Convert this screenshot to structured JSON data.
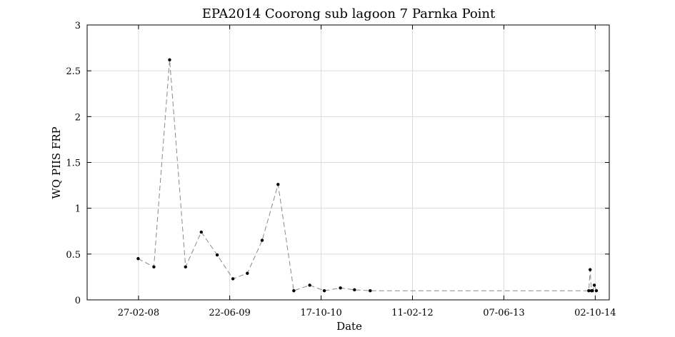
{
  "chart_data": {
    "type": "line",
    "title": "EPA2014 Coorong sub lagoon 7 Parnka Point",
    "xlabel": "Date",
    "ylabel": "WQ PIIS FRP",
    "ylim": [
      0,
      3
    ],
    "y_ticks": [
      0,
      0.5,
      1,
      1.5,
      2,
      2.5,
      3
    ],
    "y_tick_labels": [
      "0",
      "0.5",
      "1",
      "1.5",
      "2",
      "2.5",
      "3"
    ],
    "xlim": [
      "2007-06-01",
      "2014-12-15"
    ],
    "x_ticks": [
      "2008-02-27",
      "2009-06-22",
      "2010-10-17",
      "2012-02-11",
      "2013-06-07",
      "2014-10-02"
    ],
    "x_tick_labels": [
      "27-02-08",
      "22-06-09",
      "17-10-10",
      "11-02-12",
      "07-06-13",
      "02-10-14"
    ],
    "grid": true,
    "series": [
      {
        "x": [
          "2008-02-25",
          "2008-05-18",
          "2008-08-09",
          "2008-11-01",
          "2009-01-23",
          "2009-04-17",
          "2009-07-09",
          "2009-09-23",
          "2009-12-10",
          "2010-03-04",
          "2010-05-26",
          "2010-08-18",
          "2010-11-03",
          "2011-01-27",
          "2011-04-11",
          "2011-07-03",
          "2014-08-29",
          "2014-09-05",
          "2014-09-12",
          "2014-09-17",
          "2014-09-27",
          "2014-10-08"
        ],
        "y": [
          0.45,
          0.36,
          2.62,
          0.36,
          0.74,
          0.49,
          0.23,
          0.29,
          0.65,
          1.26,
          0.1,
          0.16,
          0.1,
          0.13,
          0.11,
          0.1,
          0.1,
          0.33,
          0.1,
          0.1,
          0.16,
          0.1
        ]
      }
    ]
  }
}
